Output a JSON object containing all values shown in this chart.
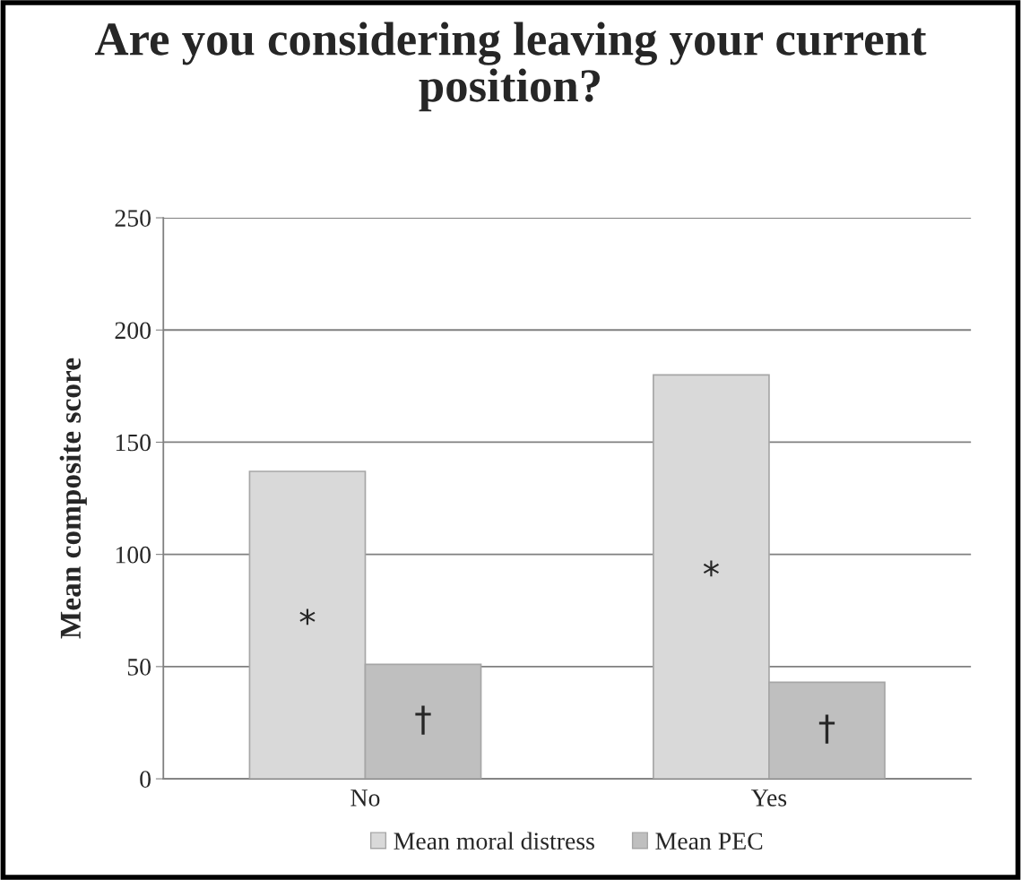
{
  "chart_data": {
    "type": "bar",
    "title": "Are you considering leaving your current position?",
    "ylabel": "Mean composite score",
    "categories": [
      "No",
      "Yes"
    ],
    "series": [
      {
        "name": "Mean moral distress",
        "color": "#d9d9d9",
        "values": [
          137,
          180
        ],
        "value_labels": [
          "*",
          "*"
        ]
      },
      {
        "name": "Mean PEC",
        "color": "#bfbfbf",
        "values": [
          51,
          43
        ],
        "value_labels": [
          "†",
          "†"
        ]
      }
    ],
    "ylim": [
      0,
      250
    ],
    "yticks": [
      0,
      50,
      100,
      150,
      200,
      250
    ],
    "grid": "y",
    "legend": "bottom"
  }
}
